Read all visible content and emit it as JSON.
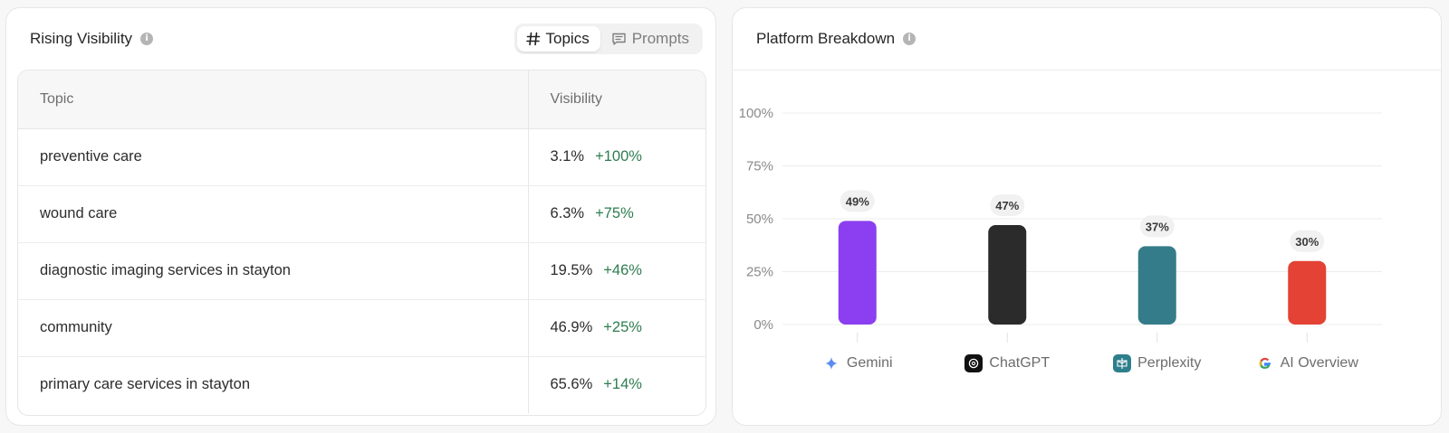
{
  "rising": {
    "title": "Rising Visibility",
    "toggle": {
      "topics": "Topics",
      "prompts": "Prompts",
      "active": "topics"
    },
    "table": {
      "headers": {
        "topic": "Topic",
        "visibility": "Visibility"
      },
      "rows": [
        {
          "topic": "preventive care",
          "visibility": "3.1%",
          "change": "+100%"
        },
        {
          "topic": "wound care",
          "visibility": "6.3%",
          "change": "+75%"
        },
        {
          "topic": "diagnostic imaging services in stayton",
          "visibility": "19.5%",
          "change": "+46%"
        },
        {
          "topic": "community",
          "visibility": "46.9%",
          "change": "+25%"
        },
        {
          "topic": "primary care services in stayton",
          "visibility": "65.6%",
          "change": "+14%"
        }
      ]
    }
  },
  "platform": {
    "title": "Platform Breakdown"
  },
  "chart_data": {
    "type": "bar",
    "categories": [
      "Gemini",
      "ChatGPT",
      "Perplexity",
      "AI Overview"
    ],
    "values": [
      49,
      47,
      37,
      30
    ],
    "data_labels": [
      "49%",
      "47%",
      "37%",
      "30%"
    ],
    "colors": [
      "#8b3ff0",
      "#2b2b2b",
      "#347c89",
      "#e34234"
    ],
    "icons": [
      "gemini-sparkle-icon",
      "chatgpt-icon",
      "perplexity-icon",
      "google-g-icon"
    ],
    "ylim": [
      0,
      100
    ],
    "yticks": [
      "0%",
      "25%",
      "50%",
      "75%",
      "100%"
    ],
    "ytick_values": [
      0,
      25,
      50,
      75,
      100
    ],
    "grid": true
  }
}
